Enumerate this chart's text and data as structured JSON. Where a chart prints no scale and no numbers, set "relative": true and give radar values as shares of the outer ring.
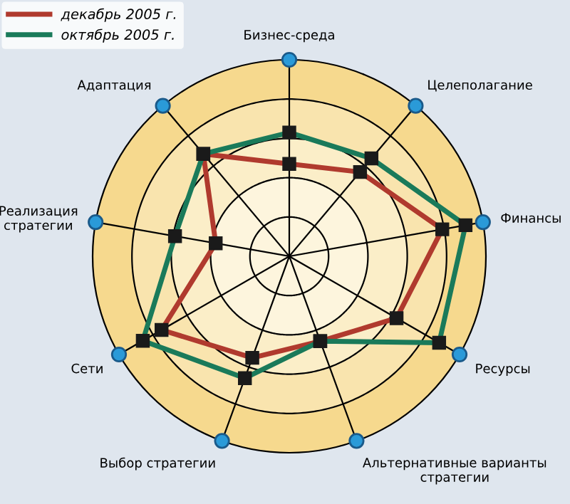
{
  "chart_data": {
    "type": "radar",
    "relative": true,
    "categories": [
      "Бизнес-среда",
      "Целеполагание",
      "Финансы",
      "Ресурсы",
      "Альтернативные варианты\nстратегии",
      "Выбор стратегии",
      "Сети",
      "Реализация\nстратегии",
      "Адаптация"
    ],
    "series": [
      {
        "name": "декабрь 2005 г.",
        "color": "#b03a2e",
        "values": [
          0.47,
          0.56,
          0.79,
          0.63,
          0.46,
          0.55,
          0.75,
          0.38,
          0.68
        ]
      },
      {
        "name": "октябрь 2005 г.",
        "color": "#1a7a5a",
        "values": [
          0.63,
          0.65,
          0.91,
          0.88,
          0.46,
          0.66,
          0.86,
          0.59,
          0.68
        ]
      }
    ],
    "marker": "square",
    "line_style": "solid",
    "grid": true,
    "legend": "top left"
  }
}
